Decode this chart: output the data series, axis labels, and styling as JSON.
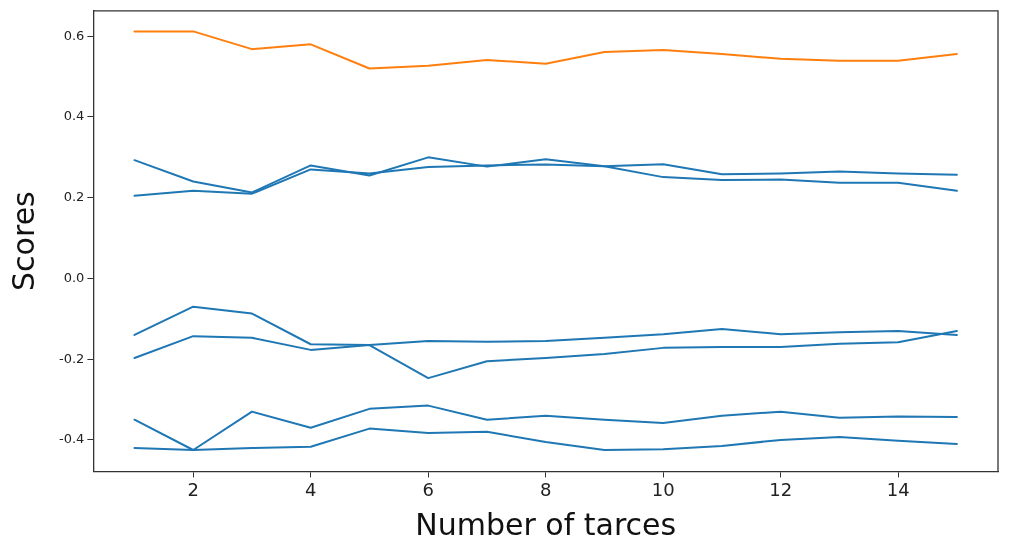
{
  "chart_data": {
    "type": "line",
    "xlabel": "Number of tarces",
    "ylabel": "Scores",
    "x": [
      1,
      2,
      3,
      4,
      5,
      6,
      7,
      8,
      9,
      10,
      11,
      12,
      13,
      14,
      15
    ],
    "xlim": [
      0.3,
      15.7
    ],
    "xticks": [
      2,
      4,
      6,
      8,
      10,
      12,
      14
    ],
    "ylim": [
      -0.478,
      0.663
    ],
    "yticks": [
      -0.4,
      -0.2,
      {
        "value": 0,
        "label": "0.0"
      },
      0.2,
      0.4,
      0.6
    ],
    "grid": false,
    "legend": false,
    "marker": "none",
    "line_style": "solid",
    "series": [
      {
        "color": "#1f77b4",
        "values": [
          0.293,
          0.24,
          0.213,
          0.28,
          0.255,
          0.3,
          0.277,
          0.295,
          0.278,
          0.283,
          0.258,
          0.26,
          0.265,
          0.26,
          0.257
        ]
      },
      {
        "color": "#1f77b4",
        "values": [
          0.205,
          0.217,
          0.21,
          0.27,
          0.26,
          0.276,
          0.28,
          0.282,
          0.278,
          0.251,
          0.244,
          0.245,
          0.237,
          0.237,
          0.217
        ]
      },
      {
        "color": "#1f77b4",
        "values": [
          -0.14,
          -0.07,
          -0.087,
          -0.163,
          -0.165,
          -0.155,
          -0.157,
          -0.155,
          -0.147,
          -0.138,
          -0.125,
          -0.138,
          -0.133,
          -0.13,
          -0.14
        ]
      },
      {
        "color": "#1f77b4",
        "values": [
          -0.197,
          -0.143,
          -0.147,
          -0.177,
          -0.165,
          -0.247,
          -0.205,
          -0.197,
          -0.187,
          -0.172,
          -0.17,
          -0.17,
          -0.162,
          -0.158,
          -0.13
        ]
      },
      {
        "color": "#1f77b4",
        "values": [
          -0.35,
          -0.425,
          -0.33,
          -0.37,
          -0.323,
          -0.315,
          -0.35,
          -0.34,
          -0.35,
          -0.358,
          -0.34,
          -0.33,
          -0.345,
          -0.342,
          -0.343
        ]
      },
      {
        "color": "#1f77b4",
        "values": [
          -0.42,
          -0.425,
          -0.42,
          -0.417,
          -0.372,
          -0.383,
          -0.38,
          -0.405,
          -0.425,
          -0.423,
          -0.415,
          -0.4,
          -0.393,
          -0.402,
          -0.41
        ]
      },
      {
        "color": "#ff7f0e",
        "values": [
          0.612,
          0.612,
          0.568,
          0.58,
          0.52,
          0.527,
          0.541,
          0.532,
          0.561,
          0.566,
          0.556,
          0.544,
          0.539,
          0.539,
          0.556
        ]
      }
    ]
  }
}
